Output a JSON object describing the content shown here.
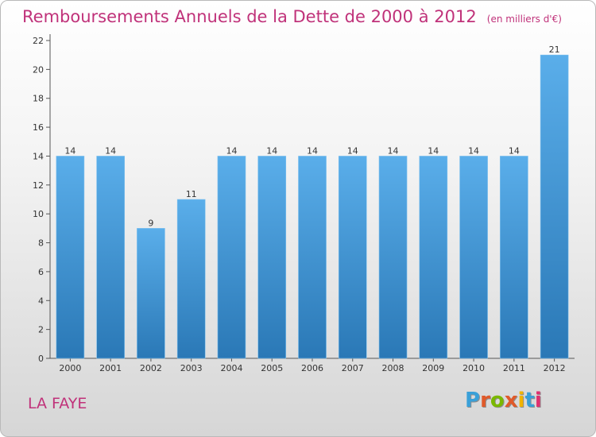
{
  "header": {
    "title": "Remboursements Annuels de la Dette de 2000 à 2012",
    "subtitle": "(en milliers d'€)"
  },
  "footer": {
    "commune": "LA FAYE",
    "logo_text": "Proxiti"
  },
  "colors": {
    "title": "#c0327a",
    "bar_top": "#5aaeea",
    "bar_bottom": "#2a78b6",
    "logo_letters": [
      "#3aa0d8",
      "#e05a2a",
      "#7ab800",
      "#e05a2a",
      "#f2b400",
      "#3aa0d8",
      "#e03070"
    ]
  },
  "chart_data": {
    "type": "bar",
    "categories": [
      "2000",
      "2001",
      "2002",
      "2003",
      "2004",
      "2005",
      "2006",
      "2007",
      "2008",
      "2009",
      "2010",
      "2011",
      "2012"
    ],
    "values": [
      14,
      14,
      9,
      11,
      14,
      14,
      14,
      14,
      14,
      14,
      14,
      14,
      21
    ],
    "data_labels": [
      "14",
      "14",
      "9",
      "11",
      "14",
      "14",
      "14",
      "14",
      "14",
      "14",
      "14",
      "14",
      "21"
    ],
    "ylim": [
      0,
      22
    ],
    "yticks": [
      0,
      2,
      4,
      6,
      8,
      10,
      12,
      14,
      16,
      18,
      20,
      22
    ],
    "grid": false,
    "legend": "none"
  }
}
